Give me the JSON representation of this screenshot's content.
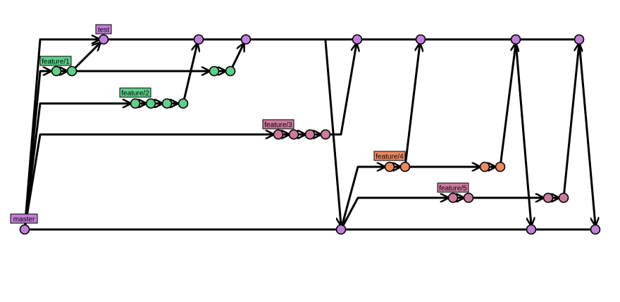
{
  "colors": {
    "master": "#c27fd9",
    "test": "#c27fd9",
    "feature_green": "#5fcf8a",
    "feature_pink": "#cc7a9e",
    "feature_orange": "#e98a62",
    "line": "#000000"
  },
  "branches": [
    {
      "name": "master",
      "label": "master",
      "color": "#c27fd9"
    },
    {
      "name": "test",
      "label": "test",
      "color": "#c27fd9"
    },
    {
      "name": "feature1",
      "label": "feature/1",
      "color": "#5fcf8a"
    },
    {
      "name": "feature2",
      "label": "feature/2",
      "color": "#5fcf8a"
    },
    {
      "name": "feature3",
      "label": "feature/3",
      "color": "#cc7a9e"
    },
    {
      "name": "feature4",
      "label": "feature/4",
      "color": "#e98a62"
    },
    {
      "name": "feature5",
      "label": "feature/5",
      "color": "#cc7a9e"
    }
  ]
}
